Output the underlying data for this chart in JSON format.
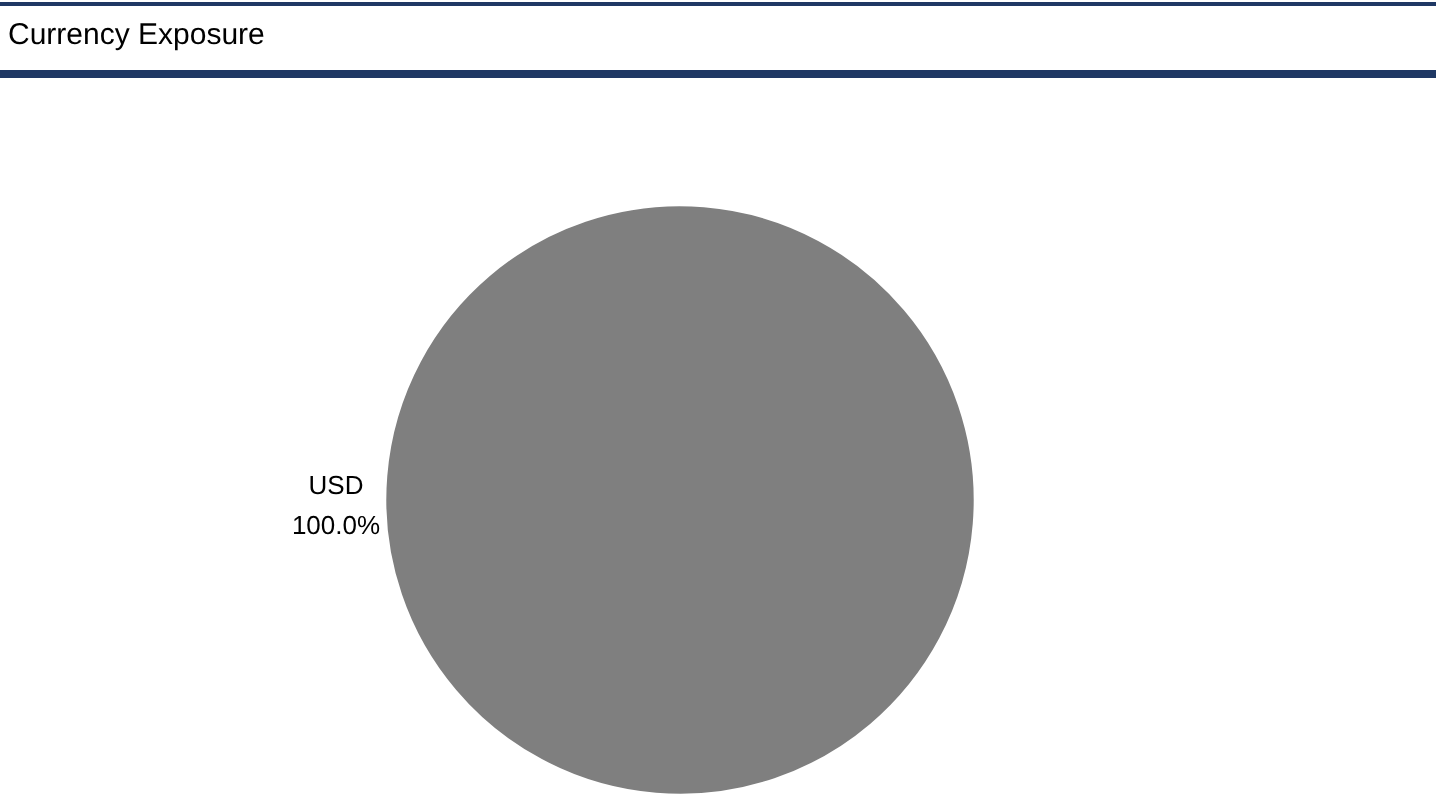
{
  "chart_data": {
    "type": "pie",
    "title": "Currency Exposure",
    "categories": [
      "USD"
    ],
    "values": [
      100
    ],
    "colors": [
      "#7f7f7f"
    ],
    "value_labels": [
      "100.0%"
    ]
  }
}
